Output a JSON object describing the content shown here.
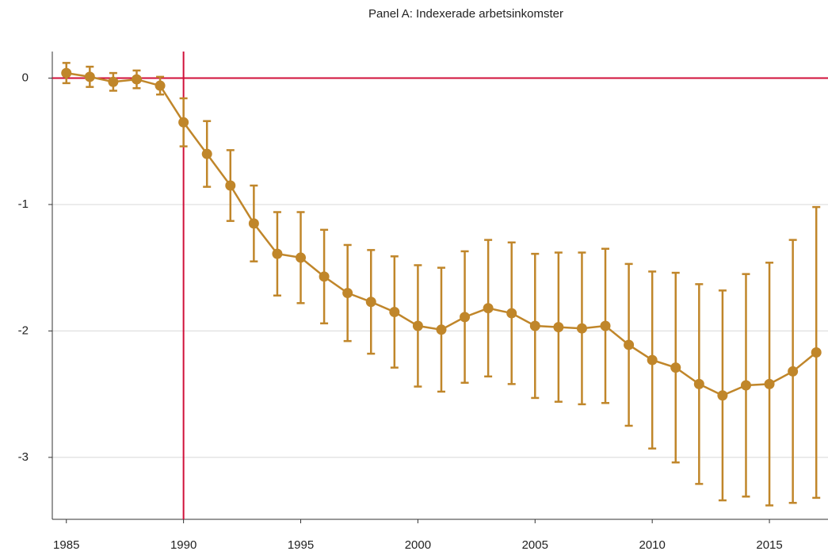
{
  "chart_data": {
    "type": "line",
    "title": "Panel A: Indexerade arbetsinkomster",
    "x": [
      1985,
      1986,
      1987,
      1988,
      1989,
      1990,
      1991,
      1992,
      1993,
      1994,
      1995,
      1996,
      1997,
      1998,
      1999,
      2000,
      2001,
      2002,
      2003,
      2004,
      2005,
      2006,
      2007,
      2008,
      2009,
      2010,
      2011,
      2012,
      2013,
      2014,
      2015,
      2016,
      2017
    ],
    "series": [
      {
        "color": "#c0862a",
        "values": [
          0.04,
          0.01,
          -0.03,
          -0.01,
          -0.06,
          -0.35,
          -0.6,
          -0.85,
          -1.15,
          -1.39,
          -1.42,
          -1.57,
          -1.7,
          -1.77,
          -1.85,
          -1.96,
          -1.99,
          -1.89,
          -1.82,
          -1.86,
          -1.96,
          -1.97,
          -1.98,
          -1.96,
          -2.11,
          -2.23,
          -2.29,
          -2.42,
          -2.51,
          -2.43,
          -2.42,
          -2.32,
          -2.17
        ],
        "errors": [
          0.08,
          0.08,
          0.07,
          0.07,
          0.07,
          0.19,
          0.26,
          0.28,
          0.3,
          0.33,
          0.36,
          0.37,
          0.38,
          0.41,
          0.44,
          0.48,
          0.49,
          0.52,
          0.54,
          0.56,
          0.57,
          0.59,
          0.6,
          0.61,
          0.64,
          0.7,
          0.75,
          0.79,
          0.83,
          0.88,
          0.96,
          1.04,
          1.15
        ]
      }
    ],
    "xlim": [
      1984.4,
      2017.5
    ],
    "xticks": [
      1985,
      1990,
      1995,
      2000,
      2005,
      2010,
      2015
    ],
    "ylim": [
      -3.49,
      0.21
    ],
    "yticks": [
      -3,
      -2,
      -1,
      0
    ],
    "grid": true,
    "hline": 0,
    "vline": 1990,
    "reference_color": "#d0103a"
  }
}
